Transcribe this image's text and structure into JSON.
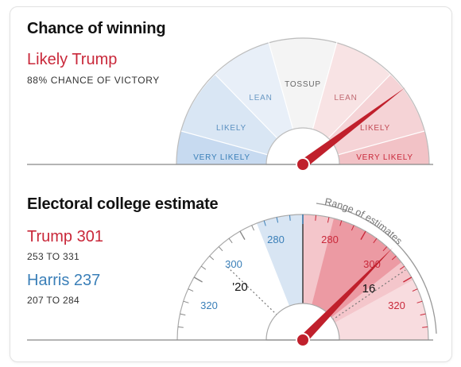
{
  "chance": {
    "title": "Chance of winning",
    "headline": "Likely Trump",
    "subtitle": "88% CHANCE OF VICTORY",
    "probability": 0.88,
    "labels": {
      "harris_very_likely": "VERY LIKELY",
      "harris_likely": "LIKELY",
      "harris_lean": "LEAN",
      "tossup": "TOSSUP",
      "trump_lean": "LEAN",
      "trump_likely": "LIKELY",
      "trump_very_likely": "VERY LIKELY"
    }
  },
  "electoral": {
    "title": "Electoral college estimate",
    "trump": {
      "label": "Trump 301",
      "range": "253 TO 331",
      "estimate": 301,
      "low": 253,
      "high": 331
    },
    "harris": {
      "label": "Harris 237",
      "range": "207 TO 284",
      "estimate": 237,
      "low": 207,
      "high": 284
    },
    "range_label": "Range of estimates",
    "ticks": {
      "left_320": "320",
      "left_300": "300",
      "left_280": "280",
      "right_280": "280",
      "right_300": "300",
      "right_320": "320"
    },
    "partial_left": "'20",
    "partial_right": "16"
  },
  "colors": {
    "trump_red": "#c9283a",
    "harris_blue": "#3a7fb8",
    "needle": "#c0202c"
  }
}
